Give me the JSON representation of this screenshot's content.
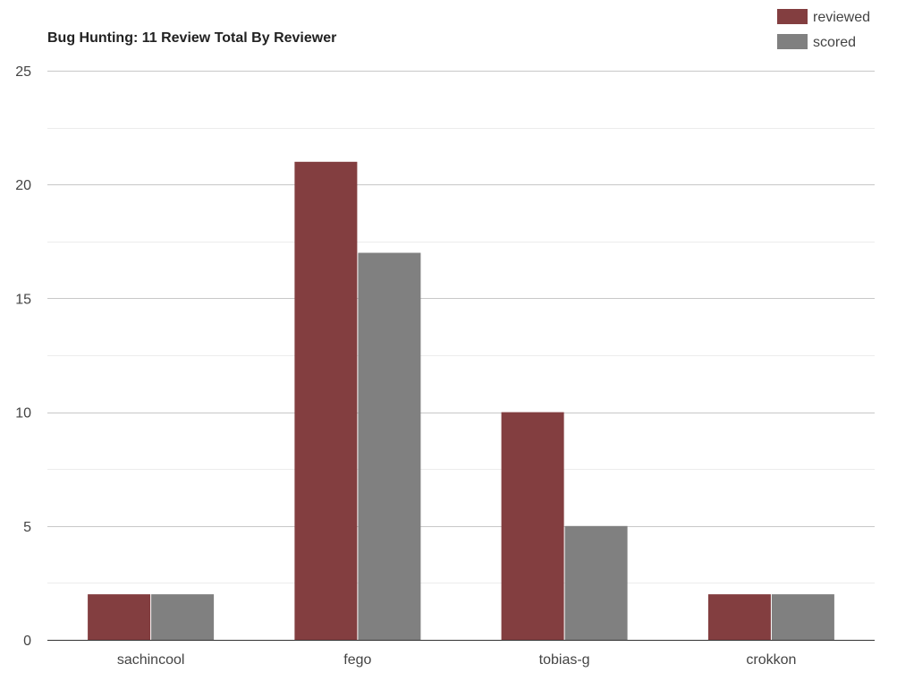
{
  "chart_data": {
    "type": "bar",
    "title": "Bug Hunting: 11 Review Total By Reviewer",
    "xlabel": "",
    "ylabel": "",
    "categories": [
      "sachincool",
      "fego",
      "tobias-g",
      "crokkon"
    ],
    "series": [
      {
        "name": "reviewed",
        "color": "#833e40",
        "values": [
          2,
          21,
          10,
          2
        ]
      },
      {
        "name": "scored",
        "color": "#808080",
        "values": [
          2,
          17,
          5,
          2
        ]
      }
    ],
    "ylim": [
      0,
      25
    ],
    "yticks": [
      0,
      5,
      10,
      15,
      20,
      25
    ],
    "grid": true,
    "legend_position": "top-right"
  }
}
